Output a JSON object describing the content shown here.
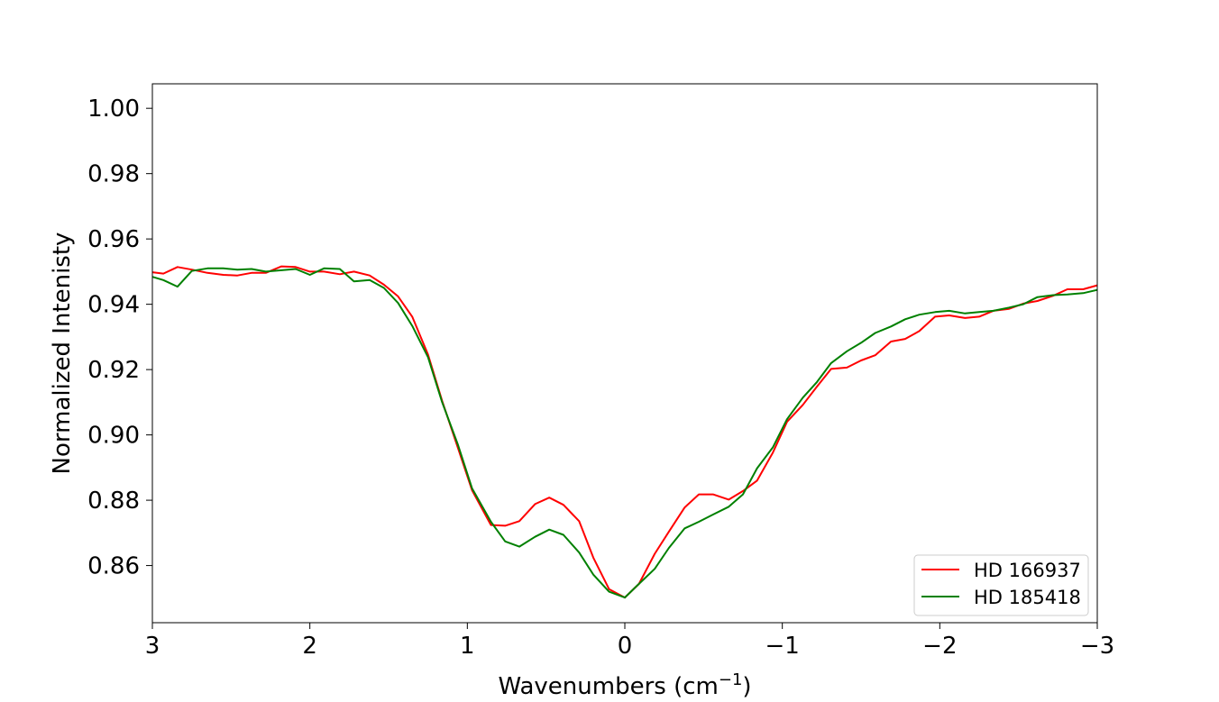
{
  "chart_data": {
    "type": "line",
    "xlabel": "Wavenumbers (cm",
    "xlabel_sup": "−1",
    "xlabel_close": ")",
    "ylabel": "Normalized Intenisty",
    "xlim": [
      3,
      -3
    ],
    "ylim": [
      0.8425,
      1.0075
    ],
    "x_ticks": [
      3,
      2,
      1,
      0,
      -1,
      -2,
      -3
    ],
    "x_tick_labels": [
      "3",
      "2",
      "1",
      "0",
      "−1",
      "−2",
      "−3"
    ],
    "y_ticks": [
      0.86,
      0.88,
      0.9,
      0.92,
      0.94,
      0.96,
      0.98,
      1.0
    ],
    "y_tick_labels": [
      "0.86",
      "0.88",
      "0.90",
      "0.92",
      "0.94",
      "0.96",
      "0.98",
      "1.00"
    ],
    "grid": false,
    "legend_position": "lower-right",
    "series": [
      {
        "name": "HD 166937",
        "color": "#ff0000",
        "points": [
          [
            3.0,
            0.9498
          ],
          [
            2.93,
            0.9494
          ],
          [
            2.84,
            0.9514
          ],
          [
            2.75,
            0.9506
          ],
          [
            2.65,
            0.9496
          ],
          [
            2.55,
            0.949
          ],
          [
            2.46,
            0.9488
          ],
          [
            2.37,
            0.9496
          ],
          [
            2.28,
            0.9496
          ],
          [
            2.18,
            0.9516
          ],
          [
            2.09,
            0.9514
          ],
          [
            2.0,
            0.95
          ],
          [
            1.91,
            0.95
          ],
          [
            1.81,
            0.9492
          ],
          [
            1.72,
            0.95
          ],
          [
            1.62,
            0.9488
          ],
          [
            1.53,
            0.946
          ],
          [
            1.44,
            0.9424
          ],
          [
            1.35,
            0.9362
          ],
          [
            1.25,
            0.9246
          ],
          [
            1.16,
            0.9104
          ],
          [
            1.06,
            0.896
          ],
          [
            0.97,
            0.883
          ],
          [
            0.85,
            0.8724
          ],
          [
            0.76,
            0.8722
          ],
          [
            0.67,
            0.8736
          ],
          [
            0.57,
            0.8788
          ],
          [
            0.48,
            0.8808
          ],
          [
            0.39,
            0.8786
          ],
          [
            0.29,
            0.8736
          ],
          [
            0.2,
            0.8624
          ],
          [
            0.1,
            0.8528
          ],
          [
            0.0,
            0.8502
          ],
          [
            -0.09,
            0.8544
          ],
          [
            -0.19,
            0.8636
          ],
          [
            -0.28,
            0.8704
          ],
          [
            -0.38,
            0.8778
          ],
          [
            -0.47,
            0.8818
          ],
          [
            -0.56,
            0.8818
          ],
          [
            -0.66,
            0.8802
          ],
          [
            -0.75,
            0.8828
          ],
          [
            -0.84,
            0.886
          ],
          [
            -0.94,
            0.8946
          ],
          [
            -1.03,
            0.904
          ],
          [
            -1.13,
            0.9092
          ],
          [
            -1.22,
            0.9148
          ],
          [
            -1.31,
            0.9202
          ],
          [
            -1.41,
            0.9206
          ],
          [
            -1.5,
            0.9228
          ],
          [
            -1.59,
            0.9244
          ],
          [
            -1.69,
            0.9286
          ],
          [
            -1.78,
            0.9294
          ],
          [
            -1.87,
            0.9318
          ],
          [
            -1.97,
            0.9362
          ],
          [
            -2.06,
            0.9366
          ],
          [
            -2.16,
            0.9358
          ],
          [
            -2.25,
            0.9362
          ],
          [
            -2.34,
            0.938
          ],
          [
            -2.44,
            0.9386
          ],
          [
            -2.53,
            0.9402
          ],
          [
            -2.62,
            0.941
          ],
          [
            -2.72,
            0.9426
          ],
          [
            -2.81,
            0.9446
          ],
          [
            -2.91,
            0.9446
          ],
          [
            -3.0,
            0.9458
          ]
        ]
      },
      {
        "name": "HD 185418",
        "color": "#008000",
        "points": [
          [
            3.0,
            0.9484
          ],
          [
            2.93,
            0.9474
          ],
          [
            2.84,
            0.9454
          ],
          [
            2.75,
            0.9502
          ],
          [
            2.65,
            0.951
          ],
          [
            2.55,
            0.951
          ],
          [
            2.46,
            0.9506
          ],
          [
            2.37,
            0.9508
          ],
          [
            2.28,
            0.95
          ],
          [
            2.18,
            0.9504
          ],
          [
            2.09,
            0.9508
          ],
          [
            2.0,
            0.949
          ],
          [
            1.91,
            0.951
          ],
          [
            1.81,
            0.9508
          ],
          [
            1.72,
            0.947
          ],
          [
            1.62,
            0.9474
          ],
          [
            1.53,
            0.945
          ],
          [
            1.44,
            0.9404
          ],
          [
            1.35,
            0.9334
          ],
          [
            1.25,
            0.9238
          ],
          [
            1.16,
            0.91
          ],
          [
            1.06,
            0.897
          ],
          [
            0.97,
            0.8836
          ],
          [
            0.85,
            0.8734
          ],
          [
            0.76,
            0.8674
          ],
          [
            0.67,
            0.8658
          ],
          [
            0.57,
            0.8688
          ],
          [
            0.48,
            0.871
          ],
          [
            0.39,
            0.8694
          ],
          [
            0.29,
            0.864
          ],
          [
            0.2,
            0.8572
          ],
          [
            0.1,
            0.852
          ],
          [
            0.0,
            0.8502
          ],
          [
            -0.09,
            0.8544
          ],
          [
            -0.19,
            0.859
          ],
          [
            -0.28,
            0.8654
          ],
          [
            -0.38,
            0.8714
          ],
          [
            -0.47,
            0.8734
          ],
          [
            -0.56,
            0.8756
          ],
          [
            -0.66,
            0.878
          ],
          [
            -0.75,
            0.8818
          ],
          [
            -0.84,
            0.8898
          ],
          [
            -0.94,
            0.8962
          ],
          [
            -1.03,
            0.9048
          ],
          [
            -1.13,
            0.9114
          ],
          [
            -1.22,
            0.9162
          ],
          [
            -1.31,
            0.922
          ],
          [
            -1.41,
            0.9256
          ],
          [
            -1.5,
            0.9282
          ],
          [
            -1.59,
            0.9312
          ],
          [
            -1.69,
            0.9332
          ],
          [
            -1.78,
            0.9354
          ],
          [
            -1.87,
            0.9368
          ],
          [
            -1.97,
            0.9376
          ],
          [
            -2.06,
            0.938
          ],
          [
            -2.16,
            0.9372
          ],
          [
            -2.25,
            0.9376
          ],
          [
            -2.34,
            0.938
          ],
          [
            -2.44,
            0.939
          ],
          [
            -2.53,
            0.94
          ],
          [
            -2.62,
            0.9422
          ],
          [
            -2.72,
            0.9428
          ],
          [
            -2.81,
            0.943
          ],
          [
            -2.91,
            0.9434
          ],
          [
            -3.0,
            0.9444
          ]
        ]
      }
    ]
  }
}
